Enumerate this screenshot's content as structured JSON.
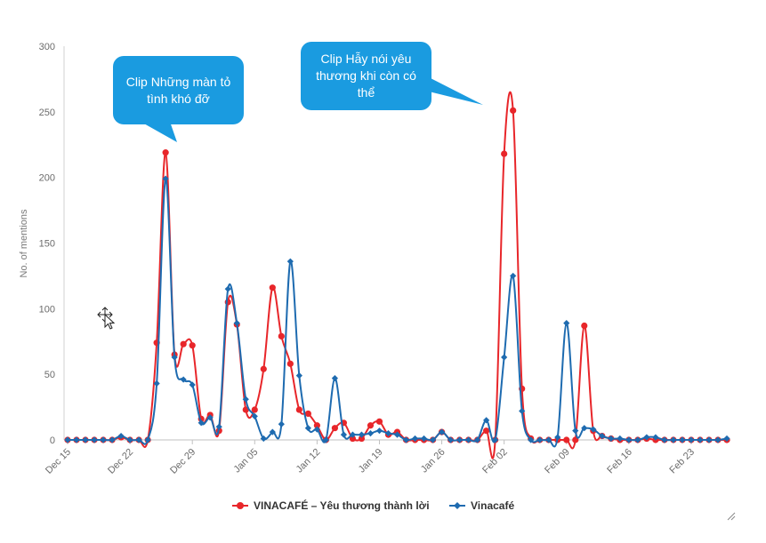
{
  "chart_data": {
    "type": "line",
    "title": "",
    "xlabel": "",
    "ylabel": "No. of mentions",
    "ylim": [
      0,
      300
    ],
    "yticks": [
      0,
      50,
      100,
      150,
      200,
      250,
      300
    ],
    "x_start_date": "Dec 15",
    "num_days": 75,
    "xtick_labels": [
      "Dec 15",
      "Dec 22",
      "Dec 29",
      "Jan 05",
      "Jan 12",
      "Jan 19",
      "Jan 26",
      "Feb 02",
      "Feb 09",
      "Feb 16",
      "Feb 23"
    ],
    "xtick_offsets": [
      0,
      7,
      14,
      21,
      28,
      35,
      42,
      49,
      56,
      63,
      70
    ],
    "grid": false,
    "legend_position": "bottom",
    "series": [
      {
        "name": "VINACAFÉ – Yêu thương thành lời",
        "color": "#e8262a",
        "marker": "circle",
        "values": [
          0,
          0,
          0,
          0,
          0,
          0,
          2,
          0,
          0,
          0,
          74,
          219,
          65,
          73,
          72,
          16,
          19,
          7,
          105,
          88,
          23,
          23,
          54,
          116,
          79,
          58,
          23,
          20,
          11,
          0,
          9,
          13,
          1,
          1,
          11,
          14,
          4,
          6,
          0,
          0,
          0,
          0,
          6,
          0,
          0,
          0,
          0,
          7,
          0,
          218,
          251,
          39,
          1,
          0,
          0,
          0,
          0,
          0,
          87,
          7,
          3,
          1,
          0,
          0,
          0,
          1,
          0,
          0,
          0,
          0,
          0,
          0,
          0,
          0,
          0
        ]
      },
      {
        "name": "Vinacafé",
        "color": "#1e6bb0",
        "marker": "diamond",
        "values": [
          0,
          0,
          0,
          0,
          0,
          0,
          3,
          0,
          0,
          0,
          43,
          199,
          63,
          46,
          42,
          13,
          17,
          10,
          115,
          89,
          31,
          18,
          1,
          6,
          12,
          136,
          49,
          9,
          8,
          0,
          47,
          4,
          4,
          4,
          5,
          7,
          5,
          4,
          0,
          1,
          1,
          0,
          6,
          0,
          0,
          0,
          0,
          15,
          0,
          63,
          125,
          22,
          0,
          0,
          0,
          2,
          89,
          7,
          9,
          8,
          3,
          1,
          1,
          0,
          0,
          2,
          2,
          0,
          0,
          0,
          0,
          0,
          0,
          0,
          1
        ]
      }
    ],
    "annotations": [
      {
        "text": "Clip Những màn tỏ tình khó đỡ",
        "day": 11
      },
      {
        "text": "Clip Hẫy nói yêu thương khi còn có thể",
        "day": 50
      }
    ]
  }
}
